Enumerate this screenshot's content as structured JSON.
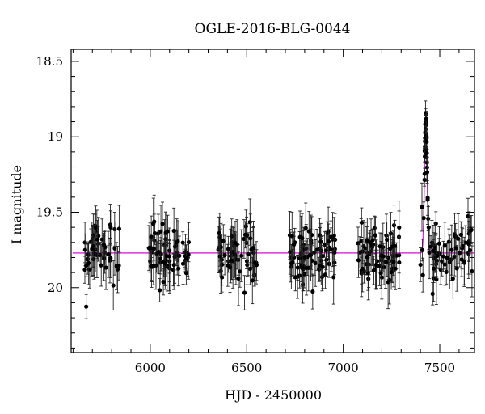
{
  "chart_data": {
    "type": "scatter",
    "title": "OGLE-2016-BLG-0044",
    "xlabel": "HJD - 2450000",
    "ylabel": "I magnitude",
    "xlim": [
      5590,
      7680
    ],
    "ylim": [
      20.43,
      18.42
    ],
    "y_inverted": true,
    "x_ticks": [
      6000,
      6500,
      7000,
      7500
    ],
    "y_ticks": [
      18.5,
      19,
      19.5,
      20
    ],
    "y_tick_labels": [
      "18.5",
      "19",
      "19.5",
      "20"
    ],
    "x_tick_labels": [
      "6000",
      "6500",
      "7000",
      "7500"
    ],
    "grid": false,
    "legend": "none",
    "colors": {
      "points": "#000000",
      "model": "#dd33dd"
    },
    "model": {
      "baseline": 19.77,
      "t0": 7428,
      "peak_mag": 18.9,
      "width_days": 7
    },
    "series": [
      {
        "type": "points_with_errorbars",
        "seasons": [
          {
            "start": 5655,
            "end": 5845,
            "n": 45,
            "seed": 11
          },
          {
            "start": 5990,
            "end": 6200,
            "n": 65,
            "seed": 23
          },
          {
            "start": 6350,
            "end": 6570,
            "n": 55,
            "seed": 37
          },
          {
            "start": 6720,
            "end": 6960,
            "n": 75,
            "seed": 41
          },
          {
            "start": 7075,
            "end": 7290,
            "n": 70,
            "seed": 53
          },
          {
            "start": 7400,
            "end": 7670,
            "n": 70,
            "seed": 67
          }
        ],
        "scatter_sigma": 0.1,
        "error_range": [
          0.07,
          0.18
        ]
      }
    ]
  }
}
